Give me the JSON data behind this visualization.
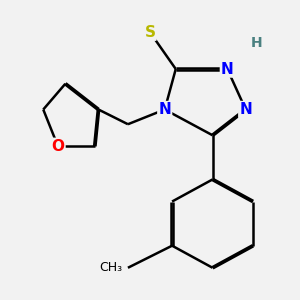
{
  "background_color": "#f2f2f2",
  "atom_colors": {
    "C": "#000000",
    "N": "#0000ff",
    "O": "#ff0000",
    "S": "#b8b800",
    "H": "#4a8080"
  },
  "bond_color": "#000000",
  "bond_width": 1.8,
  "figsize": [
    3.0,
    3.0
  ],
  "dpi": 100
}
